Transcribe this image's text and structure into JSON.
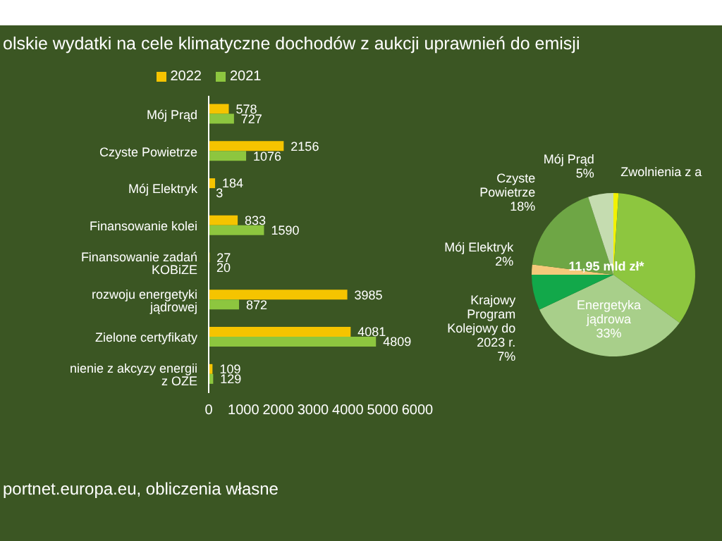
{
  "chart_data": [
    {
      "type": "bar",
      "orientation": "horizontal",
      "title": "olskie wydatki na cele klimatyczne dochodów z aukcji uprawnień do emisji",
      "categories": [
        "Mój Prąd",
        "Czyste Powietrze",
        "Mój Elektryk",
        "Finansowanie kolei",
        "Finansowanie zadań KOBiZE",
        "rozwoju energetyki jądrowej",
        "Zielone certyfikaty",
        "nienie z akcyzy energii z OZE"
      ],
      "series": [
        {
          "name": "2022",
          "color": "#f5c400",
          "values": [
            578,
            2156,
            184,
            833,
            27,
            3985,
            4081,
            109
          ]
        },
        {
          "name": "2021",
          "color": "#8dc63f",
          "values": [
            727,
            1076,
            3,
            1590,
            20,
            872,
            4809,
            129
          ]
        }
      ],
      "xlim": [
        0,
        6000
      ],
      "xticks": [
        0,
        1000,
        2000,
        3000,
        4000,
        5000,
        6000
      ],
      "data_labels": true,
      "legend": "top",
      "annotations": [
        "portnet.europa.eu, obliczenia własne"
      ]
    },
    {
      "type": "pie",
      "categories": [
        "Zwolnienia z a",
        null,
        "Energetyka jądrowa",
        "Krajowy Program Kolejowy do 2023 r.",
        "Mój Elektryk",
        "Czyste Powietrze",
        "Mój Prąd"
      ],
      "values": [
        1,
        34,
        33,
        7,
        2,
        18,
        5
      ],
      "colors": [
        "#f2f200",
        "#8dc63f",
        "#a8cf8a",
        "#12a84a",
        "#f5c97a",
        "#6ea645",
        "#c5dcb0"
      ],
      "value_labels": [
        null,
        null,
        "33%",
        "7%",
        "2%",
        "18%",
        "5%"
      ],
      "annotations": [
        "11,95 mld zł*"
      ]
    }
  ]
}
